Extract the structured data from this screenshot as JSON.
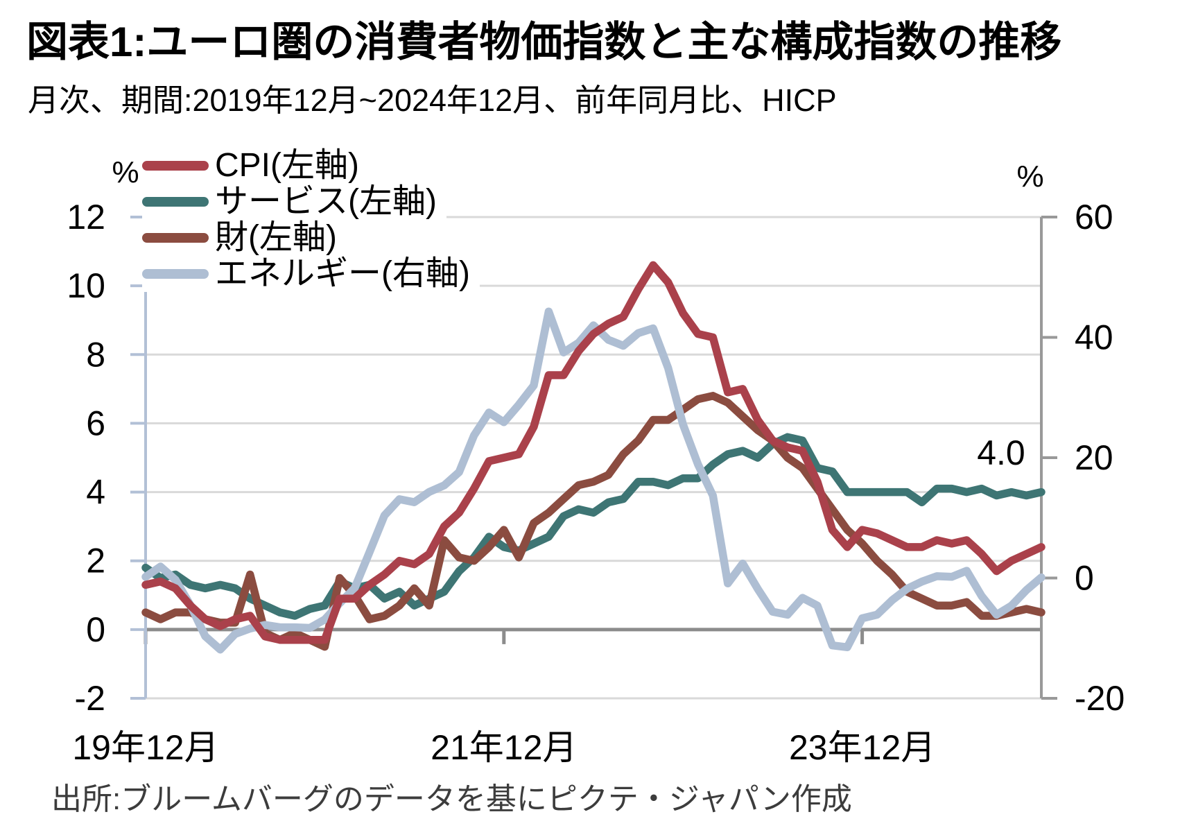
{
  "header": {
    "title": "図表1:ユーロ圏の消費者物価指数と主な構成指数の推移",
    "subtitle": "月次、期間:2019年12月~2024年12月、前年同月比、HICP"
  },
  "source": "出所:ブルームバーグのデータを基にピクテ・ジャパン作成",
  "annotation": {
    "value_label": "4.0"
  },
  "legend": {
    "items": [
      {
        "id": "cpi",
        "label": "CPI(左軸)",
        "color": "#AA414B",
        "axis": "left"
      },
      {
        "id": "services",
        "label": "サービス(左軸)",
        "color": "#3E7574",
        "axis": "left"
      },
      {
        "id": "goods",
        "label": "財(左軸)",
        "color": "#8B4C40",
        "axis": "left"
      },
      {
        "id": "energy",
        "label": "エネルギー(右軸)",
        "color": "#AEBED3",
        "axis": "right"
      }
    ]
  },
  "axes": {
    "left": {
      "unit_label": "%",
      "ticks": [
        12,
        10,
        8,
        6,
        4,
        2,
        0,
        -2
      ],
      "range": [
        -2,
        12
      ]
    },
    "right": {
      "unit_label": "%",
      "ticks": [
        60,
        40,
        20,
        0,
        -20
      ],
      "range": [
        -20,
        60
      ]
    },
    "x": {
      "labels": [
        "19年12月",
        "21年12月",
        "23年12月"
      ],
      "label_month_indices": [
        0,
        24,
        48
      ]
    }
  },
  "colors": {
    "grid": "#D9D9D9",
    "zero_line": "#8C8C8C",
    "left_spine": "#B2C0D6",
    "right_spine": "#999999",
    "x_tick": "#8C8C8C",
    "text": "#000000",
    "source_text": "#3C3C3C"
  },
  "chart_data": {
    "type": "line",
    "x_start": "2019-12",
    "x_end": "2024-12",
    "x_freq": "monthly",
    "title": "図表1:ユーロ圏の消費者物価指数と主な構成指数の推移",
    "left_ylabel": "%",
    "right_ylabel": "%",
    "left_ylim": [
      -2,
      12
    ],
    "right_ylim": [
      -20,
      60
    ],
    "grid": true,
    "legend_position": "top-left",
    "end_value_annotation": {
      "series": "services",
      "text": "4.0"
    },
    "series": [
      {
        "id": "cpi",
        "name": "CPI(左軸)",
        "axis": "left",
        "color": "#AA414B",
        "values": [
          1.3,
          1.4,
          1.2,
          0.7,
          0.3,
          0.1,
          0.3,
          0.4,
          -0.2,
          -0.3,
          -0.3,
          -0.3,
          -0.3,
          0.9,
          0.9,
          1.3,
          1.6,
          2.0,
          1.9,
          2.2,
          3.0,
          3.4,
          4.1,
          4.9,
          5.0,
          5.1,
          5.9,
          7.4,
          7.4,
          8.1,
          8.6,
          8.9,
          9.1,
          9.9,
          10.6,
          10.1,
          9.2,
          8.6,
          8.5,
          6.9,
          7.0,
          6.1,
          5.5,
          5.3,
          5.2,
          4.3,
          2.9,
          2.4,
          2.9,
          2.8,
          2.6,
          2.4,
          2.4,
          2.6,
          2.5,
          2.6,
          2.2,
          1.7,
          2.0,
          2.2,
          2.4
        ]
      },
      {
        "id": "services",
        "name": "サービス(左軸)",
        "axis": "left",
        "color": "#3E7574",
        "values": [
          1.8,
          1.5,
          1.6,
          1.3,
          1.2,
          1.3,
          1.2,
          0.9,
          0.7,
          0.5,
          0.4,
          0.6,
          0.7,
          1.4,
          1.2,
          1.3,
          0.9,
          1.1,
          0.7,
          0.9,
          1.1,
          1.7,
          2.1,
          2.7,
          2.4,
          2.3,
          2.5,
          2.7,
          3.3,
          3.5,
          3.4,
          3.7,
          3.8,
          4.3,
          4.3,
          4.2,
          4.4,
          4.4,
          4.8,
          5.1,
          5.2,
          5.0,
          5.4,
          5.6,
          5.5,
          4.7,
          4.6,
          4.0,
          4.0,
          4.0,
          4.0,
          4.0,
          3.7,
          4.1,
          4.1,
          4.0,
          4.1,
          3.9,
          4.0,
          3.9,
          4.0
        ]
      },
      {
        "id": "goods",
        "name": "財(左軸)",
        "axis": "left",
        "color": "#8B4C40",
        "values": [
          0.5,
          0.3,
          0.5,
          0.5,
          0.3,
          0.2,
          0.2,
          1.6,
          -0.1,
          -0.3,
          -0.1,
          -0.3,
          -0.5,
          1.5,
          1.0,
          0.3,
          0.4,
          0.7,
          1.2,
          0.7,
          2.6,
          2.1,
          2.0,
          2.4,
          2.9,
          2.1,
          3.1,
          3.4,
          3.8,
          4.2,
          4.3,
          4.5,
          5.1,
          5.5,
          6.1,
          6.1,
          6.4,
          6.7,
          6.8,
          6.6,
          6.2,
          5.8,
          5.5,
          5.0,
          4.7,
          4.1,
          3.5,
          2.9,
          2.5,
          2.0,
          1.6,
          1.1,
          0.9,
          0.7,
          0.7,
          0.8,
          0.4,
          0.4,
          0.5,
          0.6,
          0.5
        ]
      },
      {
        "id": "energy",
        "name": "エネルギー(右軸)",
        "axis": "right",
        "color": "#AEBED3",
        "values": [
          0.2,
          1.9,
          -0.3,
          -4.5,
          -9.7,
          -11.9,
          -9.3,
          -8.4,
          -7.8,
          -8.2,
          -8.2,
          -8.3,
          -6.9,
          -4.2,
          -1.7,
          4.3,
          10.4,
          13.1,
          12.6,
          14.3,
          15.4,
          17.6,
          23.7,
          27.5,
          25.9,
          28.8,
          32.0,
          44.3,
          37.5,
          39.1,
          42.0,
          39.6,
          38.6,
          40.7,
          41.5,
          34.9,
          25.5,
          18.9,
          13.7,
          -0.9,
          2.4,
          -1.8,
          -5.6,
          -6.1,
          -3.3,
          -4.6,
          -11.2,
          -11.5,
          -6.7,
          -6.1,
          -3.7,
          -1.8,
          -0.6,
          0.3,
          0.2,
          1.2,
          -3.0,
          -6.1,
          -4.6,
          -2.0,
          0.1
        ]
      }
    ],
    "draw_order": [
      "services",
      "goods",
      "energy",
      "cpi"
    ]
  }
}
